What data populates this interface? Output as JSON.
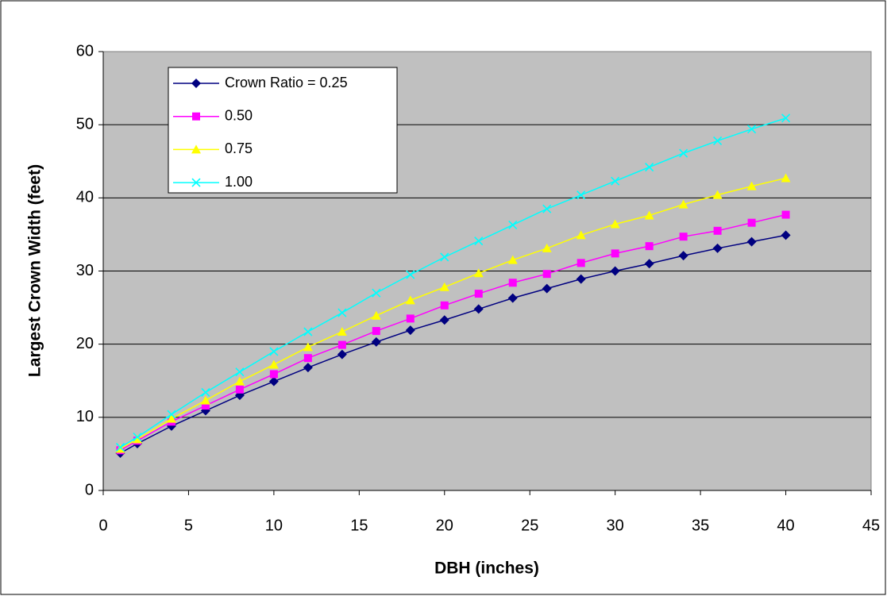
{
  "chart_data": {
    "type": "line",
    "x_label": "DBH (inches)",
    "y_label": "Largest Crown Width (feet)",
    "x": [
      1,
      2,
      4,
      6,
      8,
      10,
      12,
      14,
      16,
      18,
      20,
      22,
      24,
      26,
      28,
      30,
      32,
      34,
      36,
      38,
      40
    ],
    "series": [
      {
        "name": "Crown Ratio = 0.25",
        "color": "#000080",
        "marker": "diamond",
        "values": [
          5.1,
          6.4,
          8.8,
          10.9,
          13.0,
          14.9,
          16.8,
          18.6,
          20.3,
          21.9,
          23.3,
          24.8,
          26.3,
          27.6,
          28.9,
          30.0,
          31.0,
          32.1,
          33.1,
          34.0,
          34.9
        ]
      },
      {
        "name": "0.50",
        "color": "#ff00ff",
        "marker": "square",
        "values": [
          5.5,
          6.8,
          9.4,
          11.6,
          13.8,
          15.9,
          18.1,
          19.9,
          21.8,
          23.5,
          25.3,
          26.9,
          28.4,
          29.6,
          31.1,
          32.4,
          33.4,
          34.7,
          35.5,
          36.6,
          37.7
        ]
      },
      {
        "name": "0.75",
        "color": "#ffff00",
        "marker": "triangle",
        "values": [
          5.7,
          7.0,
          9.8,
          12.3,
          14.9,
          17.2,
          19.6,
          21.7,
          23.9,
          26.0,
          27.8,
          29.7,
          31.5,
          33.1,
          34.9,
          36.4,
          37.6,
          39.1,
          40.4,
          41.6,
          42.7
        ]
      },
      {
        "name": "1.00",
        "color": "#00ffff",
        "marker": "x",
        "values": [
          5.9,
          7.3,
          10.4,
          13.4,
          16.2,
          19.0,
          21.7,
          24.3,
          27.0,
          29.5,
          31.9,
          34.1,
          36.3,
          38.5,
          40.4,
          42.3,
          44.2,
          46.1,
          47.8,
          49.4,
          50.9
        ]
      }
    ],
    "xlim": [
      0,
      45
    ],
    "xticks": [
      0,
      5,
      10,
      15,
      20,
      25,
      30,
      35,
      40,
      45
    ],
    "ylim": [
      0,
      60
    ],
    "yticks": [
      0,
      10,
      20,
      30,
      40,
      50,
      60
    ],
    "grid": true,
    "legend": "top-left"
  }
}
